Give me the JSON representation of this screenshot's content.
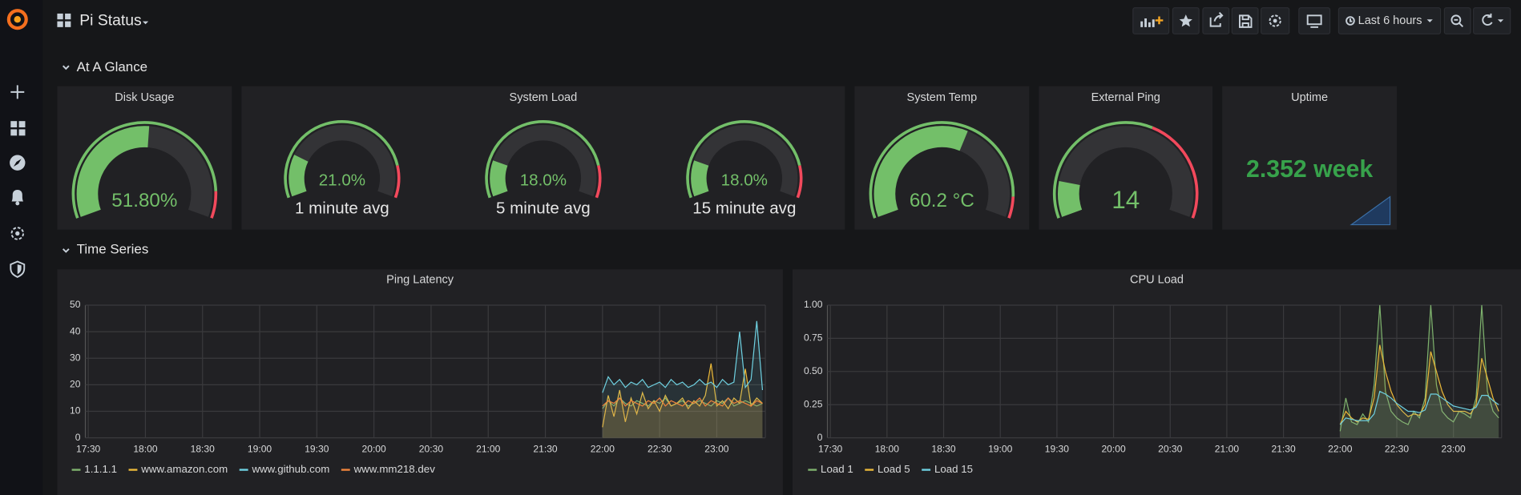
{
  "header": {
    "title": "Pi Status",
    "time_range": "Last 6 hours"
  },
  "rows": [
    {
      "title": "At A Glance"
    },
    {
      "title": "Time Series"
    }
  ],
  "gauge_panels": [
    {
      "title": "Disk Usage",
      "gauges": [
        {
          "value": 51.8,
          "value_label": "51.80%",
          "min": 0,
          "max": 100,
          "threshold": 90
        }
      ]
    },
    {
      "title": "System Load",
      "gauges": [
        {
          "value": 21,
          "value_label": "21.0%",
          "subtitle": "1 minute avg",
          "min": 0,
          "max": 100,
          "threshold": 85
        },
        {
          "value": 18,
          "value_label": "18.0%",
          "subtitle": "5 minute avg",
          "min": 0,
          "max": 100,
          "threshold": 85
        },
        {
          "value": 18,
          "value_label": "18.0%",
          "subtitle": "15 minute avg",
          "min": 0,
          "max": 100,
          "threshold": 85
        }
      ]
    },
    {
      "title": "System Temp",
      "gauges": [
        {
          "value": 60.2,
          "value_label": "60.2 °C",
          "min": 0,
          "max": 100,
          "threshold": 92
        }
      ]
    },
    {
      "title": "External Ping",
      "gauges": [
        {
          "value": 14,
          "value_label": "14",
          "min": 0,
          "max": 100,
          "threshold": 60
        }
      ]
    }
  ],
  "stat": {
    "title": "Uptime",
    "value": "2.352 week"
  },
  "chart_data": [
    {
      "type": "line",
      "title": "Ping Latency",
      "x": [
        "22:00",
        "22:03",
        "22:06",
        "22:09",
        "22:12",
        "22:15",
        "22:18",
        "22:21",
        "22:24",
        "22:27",
        "22:30",
        "22:33",
        "22:36",
        "22:39",
        "22:42",
        "22:45",
        "22:48",
        "22:51",
        "22:54",
        "22:57",
        "23:00",
        "23:03",
        "23:06",
        "23:09",
        "23:12",
        "23:15",
        "23:18",
        "23:21",
        "23:24"
      ],
      "xlim": [
        "17:30",
        "23:25"
      ],
      "xticks": [
        "17:30",
        "18:00",
        "18:30",
        "19:00",
        "19:30",
        "20:00",
        "20:30",
        "21:00",
        "21:30",
        "22:00",
        "22:30",
        "23:00"
      ],
      "ylim": [
        0,
        50
      ],
      "yticks": [
        0,
        10,
        20,
        30,
        40,
        50
      ],
      "grid": true,
      "series": [
        {
          "name": "1.1.1.1",
          "color": "#7eb26d",
          "values": [
            11,
            14,
            12,
            15,
            13,
            12,
            14,
            13,
            12,
            14,
            13,
            15,
            12,
            13,
            14,
            12,
            13,
            14,
            13,
            12,
            14,
            13,
            15,
            12,
            13,
            14,
            13,
            12,
            13
          ]
        },
        {
          "name": "www.amazon.com",
          "color": "#eab839",
          "values": [
            4,
            16,
            8,
            18,
            6,
            15,
            9,
            17,
            11,
            14,
            10,
            16,
            12,
            13,
            15,
            11,
            14,
            12,
            16,
            28,
            12,
            14,
            11,
            15,
            13,
            26,
            12,
            15,
            13
          ]
        },
        {
          "name": "www.github.com",
          "color": "#6ed0e0",
          "values": [
            17,
            23,
            20,
            22,
            19,
            21,
            20,
            22,
            19,
            20,
            21,
            19,
            22,
            20,
            21,
            19,
            20,
            22,
            20,
            21,
            19,
            22,
            20,
            21,
            40,
            19,
            22,
            44,
            18
          ]
        },
        {
          "name": "www.mm218.dev",
          "color": "#ef843c",
          "values": [
            12,
            14,
            13,
            15,
            12,
            14,
            13,
            12,
            14,
            13,
            15,
            12,
            14,
            13,
            12,
            14,
            13,
            15,
            12,
            14,
            13,
            12,
            15,
            13,
            14,
            13,
            12,
            14,
            13
          ]
        }
      ]
    },
    {
      "type": "line",
      "title": "CPU Load",
      "x": [
        "22:00",
        "22:03",
        "22:06",
        "22:09",
        "22:12",
        "22:15",
        "22:18",
        "22:21",
        "22:24",
        "22:27",
        "22:30",
        "22:33",
        "22:36",
        "22:39",
        "22:42",
        "22:45",
        "22:48",
        "22:51",
        "22:54",
        "22:57",
        "23:00",
        "23:03",
        "23:06",
        "23:09",
        "23:12",
        "23:15",
        "23:18",
        "23:21",
        "23:24"
      ],
      "xlim": [
        "17:30",
        "23:25"
      ],
      "xticks": [
        "17:30",
        "18:00",
        "18:30",
        "19:00",
        "19:30",
        "20:00",
        "20:30",
        "21:00",
        "21:30",
        "22:00",
        "22:30",
        "23:00"
      ],
      "ylim": [
        0,
        1
      ],
      "yticks": [
        0,
        0.25,
        {
          "value": 0.5,
          "label": "0.50"
        },
        0.75,
        {
          "value": 1,
          "label": "1.00"
        }
      ],
      "grid": true,
      "series": [
        {
          "name": "Load 1",
          "color": "#7eb26d",
          "values": [
            0.05,
            0.3,
            0.12,
            0.1,
            0.18,
            0.12,
            0.4,
            1.0,
            0.35,
            0.2,
            0.15,
            0.12,
            0.1,
            0.2,
            0.15,
            0.3,
            1.0,
            0.4,
            0.2,
            0.15,
            0.12,
            0.2,
            0.18,
            0.15,
            0.3,
            1.0,
            0.35,
            0.2,
            0.15
          ]
        },
        {
          "name": "Load 5",
          "color": "#eab839",
          "values": [
            0.1,
            0.2,
            0.15,
            0.12,
            0.15,
            0.14,
            0.3,
            0.7,
            0.5,
            0.35,
            0.25,
            0.2,
            0.16,
            0.18,
            0.17,
            0.25,
            0.65,
            0.5,
            0.35,
            0.25,
            0.2,
            0.2,
            0.2,
            0.18,
            0.25,
            0.6,
            0.45,
            0.3,
            0.2
          ]
        },
        {
          "name": "Load 15",
          "color": "#6ed0e0",
          "values": [
            0.1,
            0.15,
            0.14,
            0.13,
            0.13,
            0.13,
            0.18,
            0.35,
            0.33,
            0.3,
            0.26,
            0.23,
            0.2,
            0.2,
            0.19,
            0.21,
            0.33,
            0.33,
            0.3,
            0.27,
            0.24,
            0.23,
            0.22,
            0.21,
            0.23,
            0.32,
            0.32,
            0.28,
            0.25
          ]
        }
      ]
    }
  ]
}
